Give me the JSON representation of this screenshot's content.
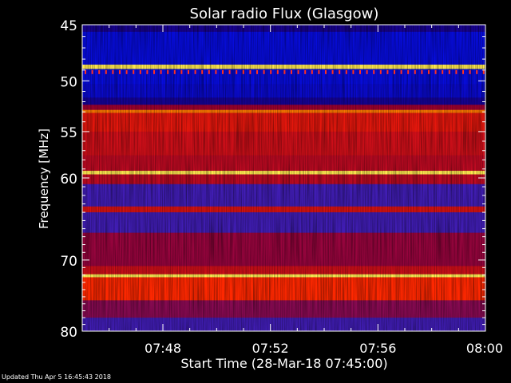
{
  "chart_data": {
    "type": "heatmap",
    "title": "Solar radio Flux (Glasgow)",
    "xlabel": "Start Time (28-Mar-18 07:45:00)",
    "ylabel": "Frequency [MHz]",
    "x_range": [
      "07:45",
      "08:00"
    ],
    "x_ticks": [
      "07:48",
      "07:52",
      "07:56",
      "08:00"
    ],
    "y_range": [
      45,
      80
    ],
    "y_scale": "log",
    "y_ticks": [
      45,
      50,
      55,
      60,
      70,
      80
    ],
    "grid": false,
    "colorscale": [
      "#1a0080",
      "#0010ff",
      "#5020a0",
      "#a00030",
      "#ff2000",
      "#ff8000",
      "#ffff60"
    ],
    "bands": [
      {
        "from": 45.0,
        "to": 45.6,
        "level": 0.02
      },
      {
        "from": 45.6,
        "to": 48.5,
        "level": 0.12
      },
      {
        "from": 48.5,
        "to": 48.9,
        "level": 0.97
      },
      {
        "from": 48.9,
        "to": 50.3,
        "level": 0.12
      },
      {
        "from": 50.3,
        "to": 51.6,
        "level": 0.1
      },
      {
        "from": 51.6,
        "to": 52.3,
        "level": 0.03
      },
      {
        "from": 52.3,
        "to": 52.8,
        "level": 0.5
      },
      {
        "from": 52.8,
        "to": 53.1,
        "level": 0.82
      },
      {
        "from": 53.1,
        "to": 55.0,
        "level": 0.62
      },
      {
        "from": 55.0,
        "to": 57.5,
        "level": 0.58
      },
      {
        "from": 57.5,
        "to": 59.2,
        "level": 0.55
      },
      {
        "from": 59.2,
        "to": 59.6,
        "level": 0.97
      },
      {
        "from": 59.6,
        "to": 60.7,
        "level": 0.55
      },
      {
        "from": 60.7,
        "to": 63.3,
        "level": 0.3
      },
      {
        "from": 63.3,
        "to": 64.0,
        "level": 0.6
      },
      {
        "from": 64.0,
        "to": 66.5,
        "level": 0.3
      },
      {
        "from": 66.5,
        "to": 70.8,
        "level": 0.48
      },
      {
        "from": 70.8,
        "to": 71.9,
        "level": 0.58
      },
      {
        "from": 71.9,
        "to": 72.3,
        "level": 0.98
      },
      {
        "from": 72.3,
        "to": 75.5,
        "level": 0.68
      },
      {
        "from": 75.5,
        "to": 78.0,
        "level": 0.45
      },
      {
        "from": 78.0,
        "to": 80.0,
        "level": 0.3
      }
    ]
  },
  "footer": {
    "updated": "Updated Thu Apr  5 16:45:43 2018"
  }
}
